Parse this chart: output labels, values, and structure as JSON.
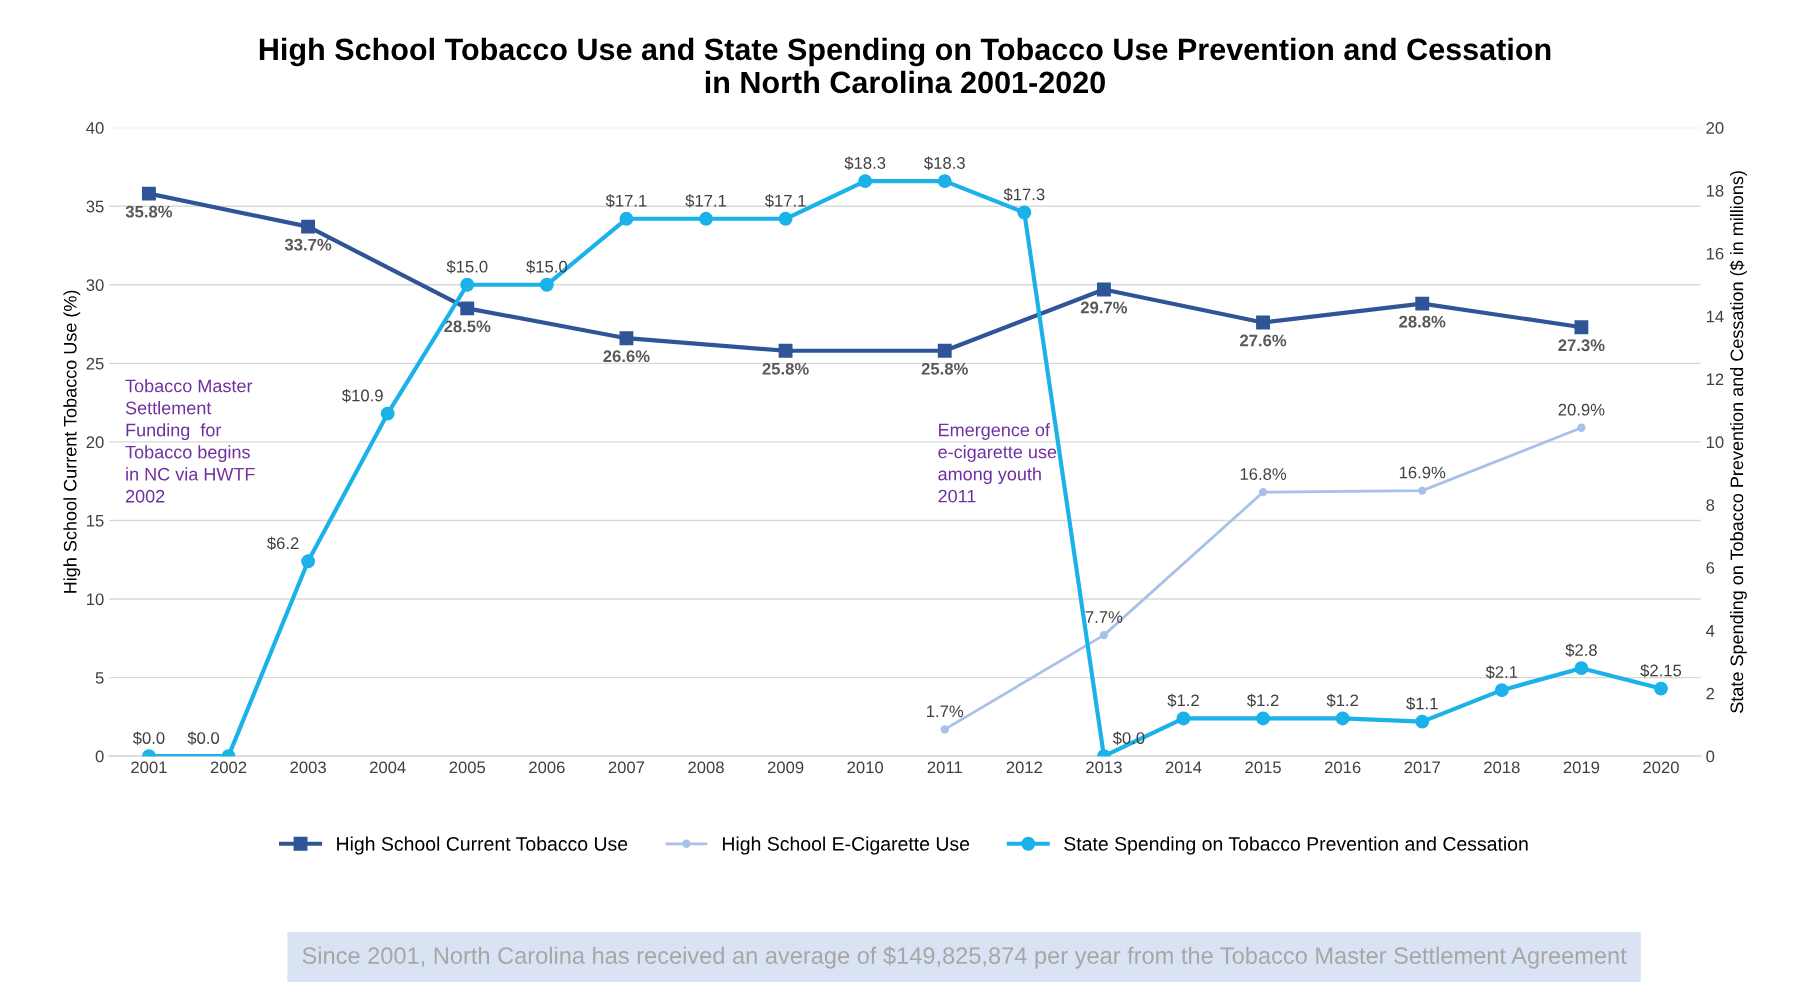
{
  "chart_data": {
    "type": "line",
    "title": "High School Tobacco Use and State Spending on Tobacco Use Prevention and Cessation\nin North Carolina 2001-2020",
    "ylabel": "High School Current Tobacco Use (%)",
    "y2label": "State Spending on Tobacco Prevention and Cessation ($ in millions)",
    "categories": [
      "2001",
      "2002",
      "2003",
      "2004",
      "2005",
      "2006",
      "2007",
      "2008",
      "2009",
      "2010",
      "2011",
      "2012",
      "2013",
      "2014",
      "2015",
      "2016",
      "2017",
      "2018",
      "2019",
      "2020"
    ],
    "series": [
      {
        "name": "High School Current Tobacco Use",
        "color": "#2f5597",
        "marker": "square",
        "values": [
          35.8,
          null,
          33.7,
          null,
          28.5,
          null,
          26.6,
          null,
          25.8,
          null,
          25.8,
          null,
          29.7,
          null,
          27.6,
          null,
          28.8,
          null,
          27.3,
          null
        ],
        "value_labels": [
          "35.8%",
          null,
          "33.7%",
          null,
          "28.5%",
          null,
          "26.6%",
          null,
          "25.8%",
          null,
          "25.8%",
          null,
          "29.7%",
          null,
          "27.6%",
          null,
          "28.8%",
          null,
          "27.3%",
          null
        ]
      },
      {
        "name": "High School E-Cigarette Use",
        "color": "#a9c1e8",
        "marker": "circle",
        "values": [
          null,
          null,
          null,
          null,
          null,
          null,
          null,
          null,
          null,
          null,
          1.7,
          null,
          7.7,
          null,
          16.8,
          null,
          16.9,
          null,
          20.9,
          null
        ],
        "value_labels": [
          null,
          null,
          null,
          null,
          null,
          null,
          null,
          null,
          null,
          null,
          "1.7%",
          null,
          "7.7%",
          null,
          "16.8%",
          null,
          "16.9%",
          null,
          "20.9%",
          null
        ]
      },
      {
        "name": "State Spending on Tobacco Prevention and Cessation",
        "color": "#1ab2e8",
        "marker": "circle",
        "axis": "y2",
        "values": [
          0.0,
          0.0,
          6.2,
          10.9,
          15.0,
          15.0,
          17.1,
          17.1,
          17.1,
          18.3,
          18.3,
          17.3,
          0.0,
          1.2,
          1.2,
          1.2,
          1.1,
          2.1,
          2.8,
          2.15
        ],
        "value_labels": [
          "$0.0",
          "$0.0",
          "$6.2",
          "$10.9",
          "$15.0",
          "$15.0",
          "$17.1",
          "$17.1",
          "$17.1",
          "$18.3",
          "$18.3",
          "$17.3",
          "$0.0",
          "$1.2",
          "$1.2",
          "$1.2",
          "$1.1",
          "$2.1",
          "$2.8",
          "$2.15"
        ]
      }
    ],
    "ylim": [
      0,
      40
    ],
    "yticks": [
      0,
      5,
      10,
      15,
      20,
      25,
      30,
      35,
      40
    ],
    "y2lim": [
      0,
      20
    ],
    "y2ticks": [
      0,
      2,
      4,
      6,
      8,
      10,
      12,
      14,
      16,
      18,
      20
    ],
    "grid": "y",
    "legend": "bottom",
    "annotations": [
      "Tobacco Master\nSettlement\nFunding  for\nTobacco begins\nin NC via HWTF\n2002",
      "Emergence of\ne-cigarette use\namong youth\n2011",
      "Since 2001, North Carolina has received an average of $149,825,874 per year from the Tobacco Master Settlement Agreement"
    ]
  }
}
